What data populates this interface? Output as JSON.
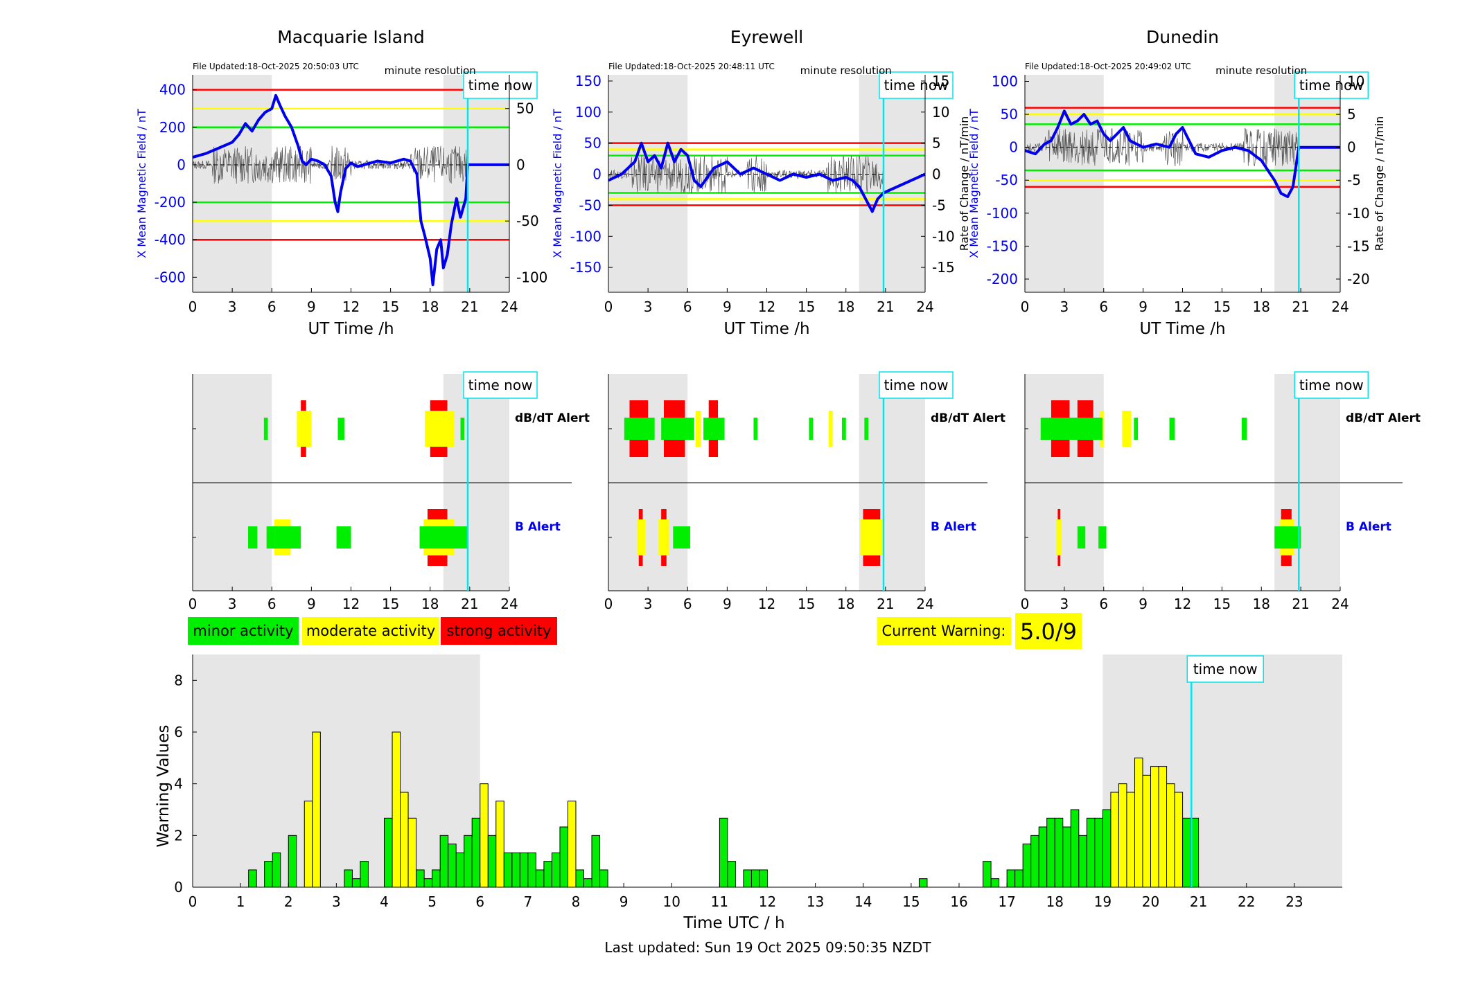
{
  "colors": {
    "red": "#ff0000",
    "yellow": "#ffff00",
    "green": "#00ee00",
    "blue": "#0000ee",
    "cyan": "#00e5ee",
    "shade": "#e6e6e6"
  },
  "common": {
    "time_now_label": "time now",
    "ut_xlabel": "UT Time /h",
    "x_ticks": [
      "0",
      "3",
      "6",
      "9",
      "12",
      "15",
      "18",
      "21",
      "24"
    ],
    "minute_resolution": "minute resolution",
    "dbdt_alert": "dB/dT Alert",
    "b_alert": "B Alert"
  },
  "legend": {
    "minor": "minor activity",
    "moderate": "moderate activity",
    "strong": "strong activity"
  },
  "current_warning": {
    "label": "Current Warning:",
    "value": "5.0/9"
  },
  "footer": {
    "last_updated": "Last updated: Sun 19 Oct 2025 09:50:35 NZDT"
  },
  "chart_data": [
    {
      "type": "line",
      "title": "Macquarie Island",
      "file_updated": "File Updated:18-Oct-2025 20:50:03 UTC",
      "xlabel": "UT Time /h",
      "ylabel_left": "X Mean Magnetic Field / nT",
      "ylabel_right": "",
      "xlim": [
        0,
        24
      ],
      "ylim": [
        -680,
        480
      ],
      "y_ticks": [
        "400",
        "200",
        "0",
        "-200",
        "-400",
        "-600"
      ],
      "ylim_right": [
        -113.3,
        80
      ],
      "y_ticks_right": [
        "50",
        "0",
        "-50",
        "-100"
      ],
      "threshold_lines": {
        "red": [
          400,
          -400
        ],
        "yellow": [
          300,
          -300
        ],
        "green": [
          200,
          -200
        ]
      },
      "shaded_ranges": [
        [
          0,
          6
        ],
        [
          19,
          24
        ]
      ],
      "time_now": 20.85,
      "series": [
        {
          "values_x": [
            0,
            1,
            2,
            3,
            3.5,
            4,
            4.5,
            5,
            5.5,
            6,
            6.3,
            6.6,
            7,
            7.5,
            8,
            8.3,
            8.6,
            9,
            9.5,
            10,
            10.5,
            10.8,
            11,
            11.2,
            11.6,
            12,
            12.5,
            13,
            14,
            15,
            16,
            16.5,
            17,
            17.3,
            17.6,
            18,
            18.2,
            18.5,
            18.8,
            19,
            19.3,
            19.6,
            20,
            20.3,
            20.7,
            20.85,
            24
          ],
          "values_y": [
            40,
            60,
            90,
            120,
            160,
            220,
            180,
            240,
            280,
            300,
            370,
            320,
            260,
            200,
            100,
            20,
            0,
            30,
            20,
            0,
            -60,
            -200,
            -250,
            -150,
            -20,
            10,
            -10,
            0,
            20,
            10,
            30,
            20,
            -50,
            -300,
            -380,
            -500,
            -640,
            -450,
            -400,
            -550,
            -480,
            -320,
            -180,
            -280,
            -180,
            0,
            0
          ]
        }
      ]
    },
    {
      "type": "line",
      "title": "Eyrewell",
      "file_updated": "File Updated:18-Oct-2025 20:48:11 UTC",
      "xlabel": "UT Time /h",
      "ylabel_left": "X Mean Magnetic Field / nT",
      "ylabel_right": "Rate of Change / nT/min",
      "xlim": [
        0,
        24
      ],
      "ylim": [
        -190,
        160
      ],
      "y_ticks": [
        "150",
        "100",
        "50",
        "0",
        "-50",
        "-100",
        "-150"
      ],
      "ylim_right": [
        -19,
        16
      ],
      "y_ticks_right": [
        "15",
        "10",
        "5",
        "0",
        "-5",
        "-10",
        "-15"
      ],
      "threshold_lines": {
        "red": [
          50,
          -50
        ],
        "yellow": [
          40,
          -40
        ],
        "green": [
          30,
          -30
        ]
      },
      "shaded_ranges": [
        [
          0,
          6
        ],
        [
          19,
          24
        ]
      ],
      "time_now": 20.85,
      "series": [
        {
          "values_x": [
            0,
            1,
            2,
            2.5,
            3,
            3.5,
            4,
            4.5,
            5,
            5.5,
            6,
            6.5,
            7,
            8,
            9,
            10,
            11,
            12,
            13,
            14,
            15,
            16,
            17,
            18,
            18.5,
            19,
            19.5,
            20,
            20.4,
            20.85,
            24
          ],
          "values_y": [
            -10,
            0,
            20,
            50,
            20,
            30,
            10,
            50,
            20,
            40,
            30,
            -10,
            -20,
            10,
            20,
            0,
            10,
            0,
            -10,
            0,
            -5,
            0,
            -10,
            -5,
            -10,
            -20,
            -40,
            -60,
            -40,
            -30,
            0
          ]
        }
      ]
    },
    {
      "type": "line",
      "title": "Dunedin",
      "file_updated": "File Updated:18-Oct-2025 20:49:02 UTC",
      "xlabel": "UT Time /h",
      "ylabel_left": "X Mean Magnetic Field / nT",
      "ylabel_right": "Rate of Change / nT/min",
      "xlim": [
        0,
        24
      ],
      "ylim": [
        -220,
        110
      ],
      "y_ticks": [
        "100",
        "50",
        "0",
        "-50",
        "-100",
        "-150",
        "-200"
      ],
      "ylim_right": [
        -22,
        11
      ],
      "y_ticks_right": [
        "10",
        "5",
        "0",
        "-5",
        "-10",
        "-15",
        "-20"
      ],
      "threshold_lines": {
        "red": [
          60,
          -60
        ],
        "yellow": [
          50,
          -50
        ],
        "green": [
          35,
          -35
        ]
      },
      "shaded_ranges": [
        [
          0,
          6
        ],
        [
          19,
          24
        ]
      ],
      "time_now": 20.85,
      "series": [
        {
          "values_x": [
            0,
            0.8,
            1.5,
            2,
            2.5,
            3,
            3.5,
            4,
            4.5,
            5,
            5.5,
            6,
            6.5,
            7,
            7.5,
            8,
            9,
            10,
            11,
            11.5,
            12,
            13,
            14,
            15,
            16,
            17,
            18,
            18.5,
            19,
            19.5,
            20,
            20.4,
            20.85,
            24
          ],
          "values_y": [
            -5,
            -10,
            5,
            10,
            30,
            55,
            35,
            40,
            50,
            35,
            40,
            20,
            10,
            20,
            30,
            10,
            0,
            5,
            0,
            20,
            30,
            -10,
            -15,
            -5,
            0,
            -5,
            -20,
            -35,
            -50,
            -70,
            -75,
            -60,
            0,
            0
          ]
        }
      ]
    },
    {
      "type": "bar",
      "title": "Warning Values",
      "ylabel": "Warning Values",
      "xlabel": "Time UTC / h",
      "xlim": [
        0,
        24
      ],
      "ylim": [
        0,
        9
      ],
      "x_ticks": [
        "0",
        "1",
        "2",
        "3",
        "4",
        "5",
        "6",
        "7",
        "8",
        "9",
        "10",
        "11",
        "12",
        "13",
        "14",
        "15",
        "16",
        "17",
        "18",
        "19",
        "20",
        "21",
        "22",
        "23"
      ],
      "y_ticks": [
        "0",
        "2",
        "4",
        "6",
        "8"
      ],
      "time_now": 20.85,
      "shaded_ranges": [
        [
          0,
          6
        ],
        [
          19,
          24
        ]
      ],
      "bin_width": 0.1667,
      "bars": [
        [
          1.167,
          0.67,
          "g"
        ],
        [
          1.5,
          1.0,
          "g"
        ],
        [
          1.667,
          1.33,
          "g"
        ],
        [
          2.0,
          2.0,
          "g"
        ],
        [
          2.333,
          3.33,
          "y"
        ],
        [
          2.5,
          6.0,
          "y"
        ],
        [
          3.167,
          0.67,
          "g"
        ],
        [
          3.333,
          0.33,
          "g"
        ],
        [
          3.5,
          1.0,
          "g"
        ],
        [
          4.0,
          2.67,
          "g"
        ],
        [
          4.167,
          6.0,
          "y"
        ],
        [
          4.333,
          3.67,
          "y"
        ],
        [
          4.5,
          2.67,
          "y"
        ],
        [
          4.667,
          0.67,
          "g"
        ],
        [
          4.833,
          0.33,
          "g"
        ],
        [
          5.0,
          0.67,
          "g"
        ],
        [
          5.167,
          2.0,
          "g"
        ],
        [
          5.333,
          1.67,
          "g"
        ],
        [
          5.5,
          1.33,
          "g"
        ],
        [
          5.667,
          2.0,
          "g"
        ],
        [
          5.833,
          2.67,
          "g"
        ],
        [
          6.0,
          4.0,
          "y"
        ],
        [
          6.167,
          2.0,
          "g"
        ],
        [
          6.333,
          3.33,
          "y"
        ],
        [
          6.5,
          1.33,
          "g"
        ],
        [
          6.667,
          1.33,
          "g"
        ],
        [
          6.833,
          1.33,
          "g"
        ],
        [
          7.0,
          1.33,
          "g"
        ],
        [
          7.167,
          0.67,
          "g"
        ],
        [
          7.333,
          1.0,
          "g"
        ],
        [
          7.5,
          1.33,
          "g"
        ],
        [
          7.667,
          2.33,
          "g"
        ],
        [
          7.833,
          3.33,
          "y"
        ],
        [
          8.0,
          0.67,
          "g"
        ],
        [
          8.167,
          0.33,
          "g"
        ],
        [
          8.333,
          2.0,
          "g"
        ],
        [
          8.5,
          0.67,
          "g"
        ],
        [
          11.0,
          2.67,
          "g"
        ],
        [
          11.167,
          1.0,
          "g"
        ],
        [
          11.5,
          0.67,
          "g"
        ],
        [
          11.667,
          0.67,
          "g"
        ],
        [
          11.833,
          0.67,
          "g"
        ],
        [
          15.167,
          0.33,
          "g"
        ],
        [
          16.5,
          1.0,
          "g"
        ],
        [
          16.667,
          0.33,
          "g"
        ],
        [
          17.0,
          0.67,
          "g"
        ],
        [
          17.167,
          0.67,
          "g"
        ],
        [
          17.333,
          1.67,
          "g"
        ],
        [
          17.5,
          2.0,
          "g"
        ],
        [
          17.667,
          2.33,
          "g"
        ],
        [
          17.833,
          2.67,
          "g"
        ],
        [
          18.0,
          2.67,
          "g"
        ],
        [
          18.167,
          2.33,
          "g"
        ],
        [
          18.333,
          3.0,
          "g"
        ],
        [
          18.5,
          2.0,
          "g"
        ],
        [
          18.667,
          2.67,
          "g"
        ],
        [
          18.833,
          2.67,
          "g"
        ],
        [
          19.0,
          3.0,
          "g"
        ],
        [
          19.167,
          3.67,
          "y"
        ],
        [
          19.333,
          4.0,
          "y"
        ],
        [
          19.5,
          3.67,
          "y"
        ],
        [
          19.667,
          5.0,
          "y"
        ],
        [
          19.833,
          4.33,
          "y"
        ],
        [
          20.0,
          4.67,
          "y"
        ],
        [
          20.167,
          4.67,
          "y"
        ],
        [
          20.333,
          4.0,
          "y"
        ],
        [
          20.5,
          3.67,
          "y"
        ],
        [
          20.667,
          2.67,
          "g"
        ],
        [
          20.833,
          2.67,
          "g"
        ]
      ]
    }
  ],
  "alerts": [
    {
      "station": "Macquarie Island",
      "dbdt": [
        [
          5.4,
          5.7,
          "g"
        ],
        [
          7.9,
          9.0,
          "y"
        ],
        [
          8.2,
          8.6,
          "r"
        ],
        [
          11.0,
          11.5,
          "g"
        ],
        [
          17.6,
          19.8,
          "y"
        ],
        [
          18.0,
          19.3,
          "r"
        ],
        [
          20.3,
          20.6,
          "g"
        ]
      ],
      "b": [
        [
          4.2,
          4.9,
          "g"
        ],
        [
          5.6,
          8.2,
          "g"
        ],
        [
          6.2,
          7.4,
          "y"
        ],
        [
          10.9,
          12.0,
          "g"
        ],
        [
          17.2,
          20.9,
          "g"
        ],
        [
          17.5,
          19.8,
          "y"
        ],
        [
          17.8,
          19.3,
          "r"
        ]
      ]
    },
    {
      "station": "Eyrewell",
      "dbdt": [
        [
          1.2,
          3.5,
          "g"
        ],
        [
          1.6,
          3.0,
          "r"
        ],
        [
          4.0,
          6.5,
          "g"
        ],
        [
          4.2,
          5.8,
          "r"
        ],
        [
          6.6,
          7.0,
          "y"
        ],
        [
          7.2,
          8.8,
          "g"
        ],
        [
          7.6,
          8.3,
          "r"
        ],
        [
          11.0,
          11.3,
          "g"
        ],
        [
          15.2,
          15.5,
          "g"
        ],
        [
          16.7,
          17.0,
          "y"
        ],
        [
          17.7,
          18.0,
          "g"
        ],
        [
          19.4,
          19.7,
          "g"
        ]
      ],
      "b": [
        [
          2.2,
          2.8,
          "y"
        ],
        [
          2.3,
          2.6,
          "r"
        ],
        [
          3.8,
          4.6,
          "y"
        ],
        [
          4.0,
          4.4,
          "r"
        ],
        [
          4.9,
          6.2,
          "g"
        ],
        [
          19.1,
          20.8,
          "y"
        ],
        [
          19.3,
          20.6,
          "r"
        ]
      ]
    },
    {
      "station": "Dunedin",
      "dbdt": [
        [
          1.2,
          5.9,
          "g"
        ],
        [
          2.0,
          3.4,
          "r"
        ],
        [
          4.0,
          5.2,
          "r"
        ],
        [
          5.7,
          6.0,
          "y"
        ],
        [
          7.4,
          8.1,
          "y"
        ],
        [
          8.3,
          8.6,
          "g"
        ],
        [
          11.0,
          11.4,
          "g"
        ],
        [
          16.5,
          16.9,
          "g"
        ]
      ],
      "b": [
        [
          2.4,
          2.8,
          "y"
        ],
        [
          2.5,
          2.7,
          "r"
        ],
        [
          4.0,
          4.6,
          "g"
        ],
        [
          5.6,
          6.2,
          "g"
        ],
        [
          19.0,
          21.0,
          "g"
        ],
        [
          19.4,
          20.5,
          "y"
        ],
        [
          19.5,
          20.3,
          "r"
        ]
      ]
    }
  ]
}
